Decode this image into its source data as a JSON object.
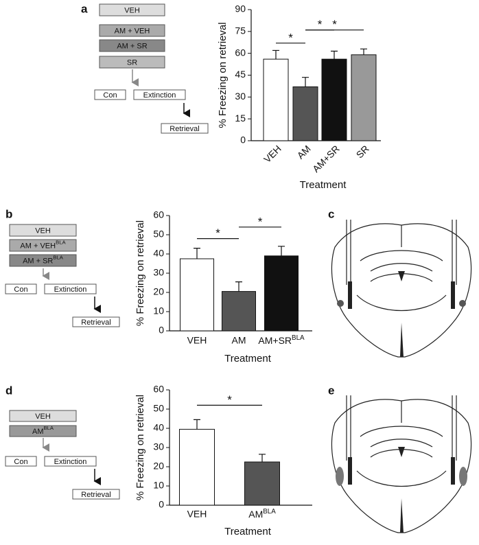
{
  "panels": [
    "a",
    "b",
    "c",
    "d",
    "e"
  ],
  "flows": [
    {
      "boxes": [
        "VEH",
        "AM + VEH",
        "AM + SR",
        "SR"
      ],
      "steps": [
        "Con",
        "Extinction",
        "Retrieval"
      ]
    },
    {
      "boxes": [
        "VEH",
        {
          "text": "AM + VEH",
          "sup": "BLA"
        },
        {
          "text": "AM + SR",
          "sup": "BLA"
        }
      ],
      "steps": [
        "Con",
        "Extinction",
        "Retrieval"
      ]
    },
    {
      "boxes": [
        "VEH",
        {
          "text": "AM",
          "sup": "BLA"
        }
      ],
      "steps": [
        "Con",
        "Extinction",
        "Retrieval"
      ]
    }
  ],
  "chart_data": [
    {
      "type": "bar",
      "y_label": "% Freezing on retrieval",
      "x_label": "Treatment",
      "categories": [
        "VEH",
        "AM",
        "AM+SR",
        "SR"
      ],
      "values": [
        56,
        37,
        56,
        59
      ],
      "errors": [
        6,
        6.5,
        5.5,
        4
      ],
      "colors": [
        "#ffffff",
        "#555555",
        "#111111",
        "#999999"
      ],
      "ylim": [
        0,
        90
      ],
      "yticks": [
        0,
        15,
        30,
        45,
        60,
        75,
        90
      ],
      "annotations": [
        {
          "label": "*",
          "from": 0,
          "to": 1,
          "y": 67
        },
        {
          "label": "*",
          "from": 1,
          "to": 2,
          "y": 76
        },
        {
          "label": "*",
          "from": 1,
          "to": 3,
          "y": 76
        }
      ]
    },
    {
      "type": "bar",
      "y_label": "% Freezing on retrieval",
      "x_label": "Treatment",
      "categories": [
        "VEH",
        "AM",
        {
          "text": "AM+SR",
          "sup": "BLA"
        }
      ],
      "values": [
        37.5,
        20.5,
        39
      ],
      "errors": [
        5.5,
        5,
        5
      ],
      "colors": [
        "#ffffff",
        "#555555",
        "#111111"
      ],
      "ylim": [
        0,
        60
      ],
      "yticks": [
        0,
        10,
        20,
        30,
        40,
        50,
        60
      ],
      "annotations": [
        {
          "label": "*",
          "from": 0,
          "to": 1,
          "y": 48
        },
        {
          "label": "*",
          "from": 1,
          "to": 2,
          "y": 54
        }
      ]
    },
    {
      "type": "bar",
      "y_label": "% Freezing on retrieval",
      "x_label": "Treatment",
      "categories": [
        "VEH",
        {
          "text": "AM",
          "sup": "BLA"
        }
      ],
      "values": [
        39.5,
        22.5
      ],
      "errors": [
        5,
        4
      ],
      "colors": [
        "#ffffff",
        "#555555"
      ],
      "ylim": [
        0,
        60
      ],
      "yticks": [
        0,
        10,
        20,
        30,
        40,
        50,
        60
      ],
      "annotations": [
        {
          "label": "*",
          "from": 0,
          "to": 1,
          "y": 52
        }
      ]
    }
  ]
}
